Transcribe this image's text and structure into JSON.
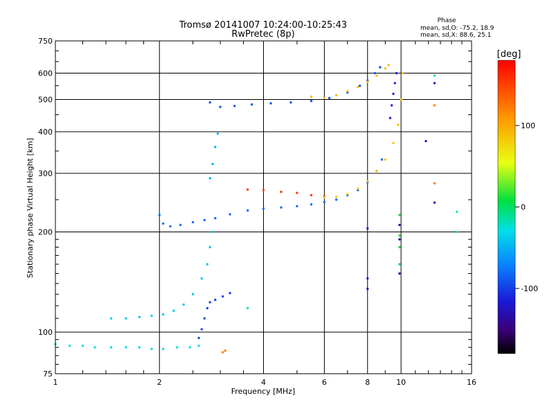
{
  "chart_data": {
    "type": "scatter",
    "title": "Tromsø 20141007 10:24:00-10:25:43",
    "subtitle": "RwPretec (8p)",
    "xlabel": "Frequency [MHz]",
    "ylabel": "Stationary phase Virtual Height [km]",
    "xscale": "log",
    "yscale": "log",
    "xlim": [
      1,
      16
    ],
    "ylim": [
      75,
      750
    ],
    "x_ticks": [
      1,
      2,
      4,
      6,
      8,
      10,
      16
    ],
    "y_ticks": [
      75,
      100,
      200,
      300,
      400,
      500,
      600,
      750
    ],
    "grid": true,
    "phase_stats": {
      "title": "Phase",
      "line_o": "mean, sd,O: -75.2, 18.9",
      "line_x": "mean, sd,X:  88.6, 25.1"
    },
    "colorbar": {
      "label": "[deg]",
      "ticks": [
        100,
        0,
        -100
      ],
      "range": [
        -180,
        180
      ],
      "colormap": "rainbow"
    },
    "traces": [
      {
        "name": "",
        "phase_deg": -25,
        "points": [
          [
            1.0,
            92
          ],
          [
            1.1,
            91
          ],
          [
            1.2,
            91
          ],
          [
            1.3,
            90
          ],
          [
            1.45,
            90
          ],
          [
            1.6,
            90
          ],
          [
            1.75,
            90
          ],
          [
            1.9,
            89
          ],
          [
            2.05,
            89
          ],
          [
            2.25,
            90
          ],
          [
            2.45,
            90
          ],
          [
            2.6,
            91
          ]
        ]
      },
      {
        "name": "",
        "phase_deg": -40,
        "points": [
          [
            1.45,
            110
          ],
          [
            1.6,
            110
          ],
          [
            1.75,
            111
          ],
          [
            1.9,
            112
          ],
          [
            2.05,
            113
          ],
          [
            2.2,
            116
          ],
          [
            2.35,
            121
          ],
          [
            2.5,
            130
          ],
          [
            2.65,
            145
          ],
          [
            2.75,
            160
          ],
          [
            2.8,
            180
          ],
          [
            2.85,
            200
          ]
        ]
      },
      {
        "name": "",
        "phase_deg": -80,
        "points": [
          [
            2.0,
            225
          ],
          [
            2.05,
            212
          ],
          [
            2.15,
            208
          ],
          [
            2.3,
            210
          ],
          [
            2.5,
            214
          ],
          [
            2.7,
            217
          ],
          [
            2.9,
            220
          ],
          [
            3.2,
            226
          ],
          [
            3.6,
            232
          ],
          [
            4.0,
            235
          ],
          [
            4.5,
            237
          ],
          [
            5.0,
            239
          ],
          [
            5.5,
            242
          ],
          [
            6.0,
            246
          ],
          [
            6.5,
            250
          ],
          [
            7.0,
            258
          ],
          [
            7.5,
            267
          ],
          [
            8.0,
            282
          ],
          [
            8.5,
            305
          ],
          [
            8.8,
            330
          ]
        ]
      },
      {
        "name": "",
        "phase_deg": -50,
        "points": [
          [
            2.8,
            290
          ],
          [
            2.85,
            320
          ],
          [
            2.9,
            360
          ],
          [
            2.95,
            395
          ]
        ]
      },
      {
        "name": "",
        "phase_deg": -90,
        "points": [
          [
            2.8,
            490
          ],
          [
            3.0,
            475
          ],
          [
            3.3,
            478
          ],
          [
            3.7,
            483
          ],
          [
            4.2,
            487
          ],
          [
            4.8,
            490
          ],
          [
            5.5,
            495
          ],
          [
            6.2,
            505
          ],
          [
            7.0,
            525
          ],
          [
            7.6,
            550
          ],
          [
            8.0,
            570
          ],
          [
            8.4,
            600
          ],
          [
            8.7,
            625
          ]
        ]
      },
      {
        "name": "",
        "phase_deg": 150,
        "points": [
          [
            3.6,
            268
          ],
          [
            4.0,
            267
          ],
          [
            4.5,
            264
          ],
          [
            5.0,
            262
          ],
          [
            5.5,
            258
          ],
          [
            6.0,
            256
          ]
        ]
      },
      {
        "name": "",
        "phase_deg": 85,
        "points": [
          [
            6.0,
            254
          ],
          [
            6.5,
            255
          ],
          [
            7.0,
            260
          ],
          [
            7.5,
            270
          ],
          [
            8.0,
            284
          ],
          [
            8.5,
            305
          ],
          [
            9.0,
            330
          ],
          [
            9.5,
            370
          ],
          [
            9.8,
            420
          ],
          [
            10.0,
            500
          ],
          [
            10.1,
            600
          ]
        ]
      },
      {
        "name": "",
        "phase_deg": 90,
        "points": [
          [
            5.5,
            510
          ],
          [
            6.0,
            505
          ],
          [
            6.5,
            515
          ],
          [
            7.0,
            530
          ],
          [
            7.5,
            545
          ],
          [
            8.0,
            565
          ],
          [
            8.5,
            590
          ],
          [
            9.0,
            620
          ],
          [
            9.2,
            635
          ]
        ]
      },
      {
        "name": "",
        "phase_deg": -110,
        "points": [
          [
            9.3,
            440
          ],
          [
            9.4,
            480
          ],
          [
            9.5,
            520
          ],
          [
            9.6,
            560
          ],
          [
            9.7,
            600
          ]
        ]
      },
      {
        "name": "",
        "phase_deg": -95,
        "points": [
          [
            2.6,
            96
          ],
          [
            2.65,
            102
          ],
          [
            2.7,
            110
          ],
          [
            2.75,
            118
          ],
          [
            2.8,
            123
          ],
          [
            2.9,
            125
          ],
          [
            3.05,
            128
          ],
          [
            3.2,
            131
          ]
        ]
      },
      {
        "name": "",
        "phase_deg": 10,
        "points": [
          [
            9.9,
            160
          ],
          [
            9.9,
            180
          ],
          [
            9.9,
            195
          ],
          [
            9.9,
            225
          ]
        ]
      },
      {
        "name": "",
        "phase_deg": -130,
        "points": [
          [
            8.0,
            205
          ],
          [
            8.0,
            145
          ],
          [
            8.0,
            135
          ],
          [
            9.9,
            150
          ],
          [
            9.9,
            190
          ],
          [
            9.9,
            210
          ]
        ]
      },
      {
        "name": "",
        "phase_deg": 120,
        "points": [
          [
            3.05,
            87
          ],
          [
            3.1,
            88
          ],
          [
            12.5,
            280
          ],
          [
            12.5,
            480
          ]
        ]
      },
      {
        "name": "",
        "phase_deg": -120,
        "points": [
          [
            12.5,
            245
          ],
          [
            12.5,
            560
          ],
          [
            11.8,
            375
          ]
        ]
      },
      {
        "name": "",
        "phase_deg": -20,
        "points": [
          [
            12.5,
            590
          ],
          [
            14.5,
            200
          ],
          [
            14.5,
            230
          ],
          [
            3.6,
            118
          ]
        ]
      }
    ]
  }
}
